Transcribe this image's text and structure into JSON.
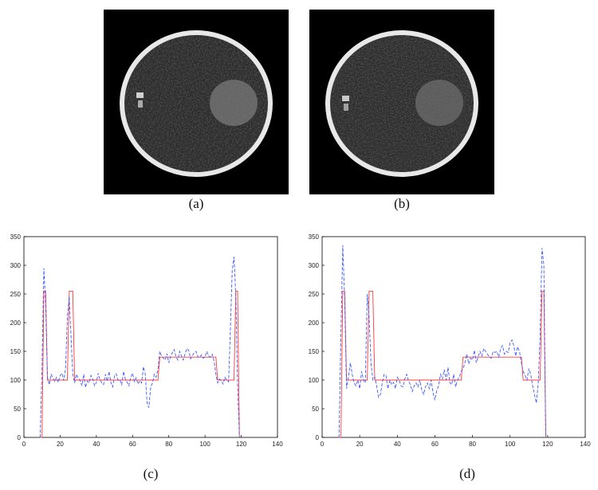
{
  "captions": {
    "a": "(a)",
    "b": "(b)",
    "c": "(c)",
    "d": "(d)"
  },
  "colors": {
    "reference": "#ff3b3b",
    "reconstruction": "#3f5bff",
    "image_bg": "#000000"
  },
  "chart_data": [
    {
      "type": "line",
      "title": "",
      "xlabel": "",
      "ylabel": "",
      "xlim": [
        0,
        140
      ],
      "ylim": [
        0,
        350
      ],
      "xticks": [
        0,
        20,
        40,
        60,
        80,
        100,
        120,
        140
      ],
      "yticks": [
        0,
        50,
        100,
        150,
        200,
        250,
        300,
        350
      ],
      "grid": false,
      "series": [
        {
          "style": "solid",
          "color": "#ff3b3b",
          "x": [
            9,
            10,
            11,
            12,
            13,
            24,
            25,
            27,
            28,
            74,
            75,
            106,
            107,
            116,
            117,
            118,
            119
          ],
          "y": [
            0,
            0,
            255,
            255,
            100,
            100,
            255,
            255,
            100,
            100,
            140,
            140,
            100,
            100,
            255,
            255,
            0
          ]
        },
        {
          "style": "dashed",
          "color": "#3f5bff",
          "x": [
            9,
            10,
            11,
            12,
            13,
            14,
            15,
            16,
            17,
            18,
            19,
            20,
            21,
            22,
            23,
            24,
            25,
            26,
            27,
            28,
            29,
            30,
            31,
            32,
            33,
            34,
            35,
            36,
            37,
            38,
            39,
            40,
            41,
            42,
            43,
            44,
            45,
            46,
            47,
            48,
            49,
            50,
            51,
            52,
            53,
            54,
            55,
            56,
            57,
            58,
            59,
            60,
            61,
            62,
            63,
            64,
            65,
            66,
            67,
            68,
            69,
            70,
            71,
            72,
            73,
            74,
            75,
            76,
            77,
            78,
            79,
            80,
            81,
            82,
            83,
            84,
            85,
            86,
            87,
            88,
            89,
            90,
            91,
            92,
            93,
            94,
            95,
            96,
            97,
            98,
            99,
            100,
            101,
            102,
            103,
            104,
            105,
            106,
            107,
            108,
            109,
            110,
            111,
            112,
            113,
            114,
            115,
            116,
            117,
            118,
            119
          ],
          "y": [
            0,
            120,
            295,
            230,
            105,
            92,
            110,
            104,
            98,
            105,
            96,
            108,
            112,
            99,
            120,
            210,
            245,
            175,
            110,
            95,
            110,
            103,
            100,
            90,
            110,
            87,
            98,
            95,
            108,
            102,
            90,
            96,
            112,
            100,
            95,
            92,
            110,
            98,
            115,
            96,
            88,
            107,
            111,
            99,
            100,
            92,
            115,
            102,
            96,
            90,
            105,
            112,
            97,
            104,
            93,
            99,
            95,
            123,
            110,
            60,
            52,
            88,
            95,
            110,
            105,
            118,
            150,
            142,
            138,
            135,
            146,
            130,
            142,
            148,
            153,
            140,
            135,
            150,
            142,
            135,
            146,
            155,
            152,
            137,
            142,
            148,
            150,
            141,
            139,
            144,
            138,
            140,
            150,
            142,
            140,
            145,
            133,
            110,
            95,
            102,
            98,
            93,
            105,
            100,
            97,
            185,
            290,
            315,
            245,
            90,
            0
          ]
        }
      ]
    },
    {
      "type": "line",
      "title": "",
      "xlabel": "",
      "ylabel": "",
      "xlim": [
        0,
        140
      ],
      "ylim": [
        0,
        350
      ],
      "xticks": [
        0,
        20,
        40,
        60,
        80,
        100,
        120,
        140
      ],
      "yticks": [
        0,
        50,
        100,
        150,
        200,
        250,
        300,
        350
      ],
      "grid": false,
      "series": [
        {
          "style": "solid",
          "color": "#ff3b3b",
          "x": [
            9,
            10,
            11,
            12,
            13,
            24,
            25,
            27,
            28,
            74,
            75,
            106,
            107,
            116,
            117,
            118,
            119
          ],
          "y": [
            0,
            0,
            255,
            255,
            100,
            100,
            255,
            255,
            100,
            100,
            140,
            140,
            100,
            100,
            255,
            255,
            0
          ]
        },
        {
          "style": "dashed",
          "color": "#3f5bff",
          "x": [
            9,
            10,
            11,
            12,
            13,
            14,
            15,
            16,
            17,
            18,
            19,
            20,
            21,
            22,
            23,
            24,
            25,
            26,
            27,
            28,
            29,
            30,
            31,
            32,
            33,
            34,
            35,
            36,
            37,
            38,
            39,
            40,
            41,
            42,
            43,
            44,
            45,
            46,
            47,
            48,
            49,
            50,
            51,
            52,
            53,
            54,
            55,
            56,
            57,
            58,
            59,
            60,
            61,
            62,
            63,
            64,
            65,
            66,
            67,
            68,
            69,
            70,
            71,
            72,
            73,
            74,
            75,
            76,
            77,
            78,
            79,
            80,
            81,
            82,
            83,
            84,
            85,
            86,
            87,
            88,
            89,
            90,
            91,
            92,
            93,
            94,
            95,
            96,
            97,
            98,
            99,
            100,
            101,
            102,
            103,
            104,
            105,
            106,
            107,
            108,
            109,
            110,
            111,
            112,
            113,
            114,
            115,
            116,
            117,
            118,
            119
          ],
          "y": [
            0,
            180,
            335,
            240,
            85,
            105,
            130,
            110,
            95,
            90,
            100,
            85,
            115,
            100,
            95,
            250,
            210,
            130,
            100,
            105,
            90,
            70,
            75,
            95,
            110,
            108,
            85,
            100,
            92,
            96,
            85,
            105,
            100,
            90,
            88,
            102,
            110,
            98,
            92,
            80,
            90,
            95,
            88,
            100,
            83,
            75,
            88,
            95,
            85,
            100,
            78,
            65,
            82,
            90,
            110,
            102,
            118,
            100,
            122,
            95,
            92,
            110,
            88,
            100,
            105,
            115,
            120,
            130,
            145,
            128,
            138,
            135,
            152,
            130,
            140,
            150,
            142,
            155,
            150,
            145,
            140,
            138,
            150,
            148,
            150,
            140,
            155,
            160,
            145,
            150,
            148,
            165,
            170,
            160,
            142,
            158,
            150,
            130,
            115,
            108,
            100,
            120,
            110,
            90,
            75,
            60,
            95,
            180,
            330,
            300,
            0
          ]
        }
      ]
    }
  ]
}
